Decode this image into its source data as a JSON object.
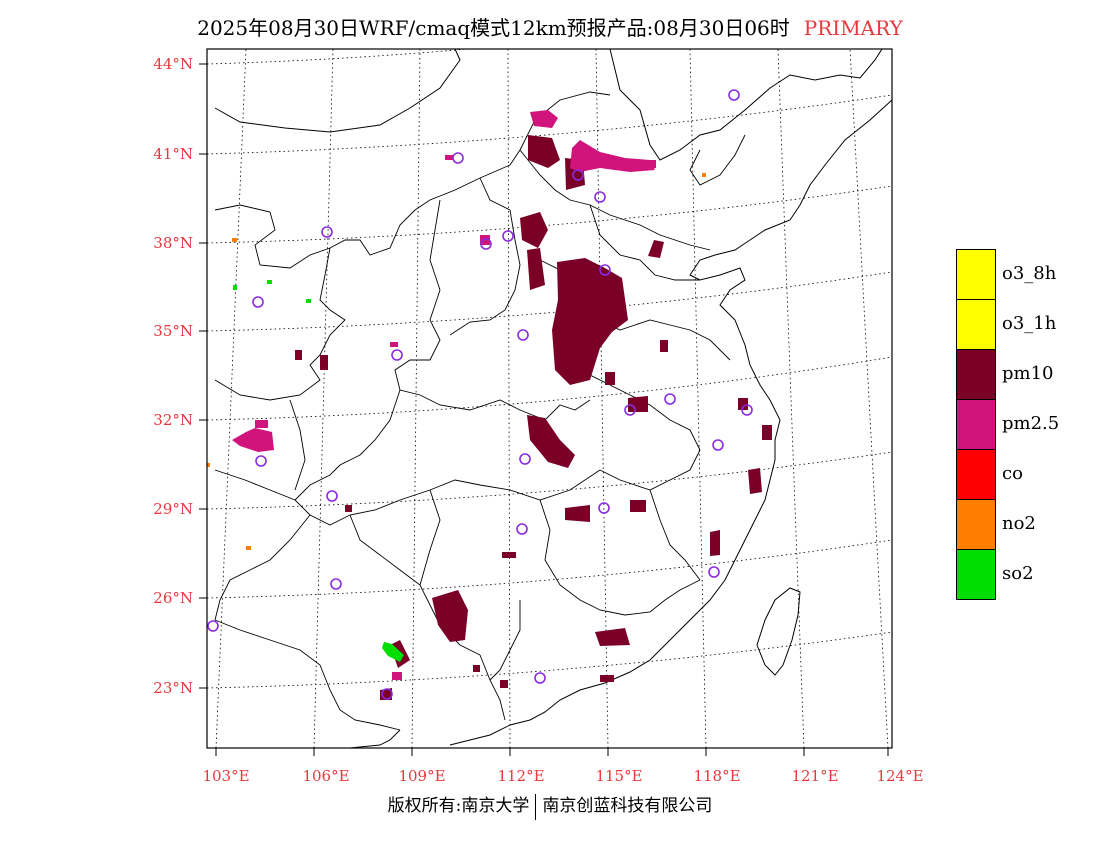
{
  "header": {
    "title": "2025年08月30日WRF/cmaq模式12km预报产品:08月30日06时",
    "badge": "PRIMARY"
  },
  "map": {
    "lat_labels": [
      "44°N",
      "41°N",
      "38°N",
      "35°N",
      "32°N",
      "29°N",
      "26°N",
      "23°N"
    ],
    "lon_labels": [
      "103°E",
      "106°E",
      "109°E",
      "112°E",
      "115°E",
      "118°E",
      "121°E",
      "124°E"
    ],
    "colors": {
      "pm10": "#7a0027",
      "pm25": "#d1147c",
      "so2": "#00dd00",
      "no2": "#ff8000",
      "station": "#8a2be2"
    }
  },
  "legend": [
    {
      "label": "o3_8h",
      "color": "#ffff00"
    },
    {
      "label": "o3_1h",
      "color": "#ffff00"
    },
    {
      "label": "pm10",
      "color": "#7a0027"
    },
    {
      "label": "pm2.5",
      "color": "#d1147c"
    },
    {
      "label": "co",
      "color": "#ff0000"
    },
    {
      "label": "no2",
      "color": "#ff8000"
    },
    {
      "label": "so2",
      "color": "#00dd00"
    }
  ],
  "footer": {
    "left": "版权所有:南京大学",
    "right": "南京创蓝科技有限公司"
  }
}
